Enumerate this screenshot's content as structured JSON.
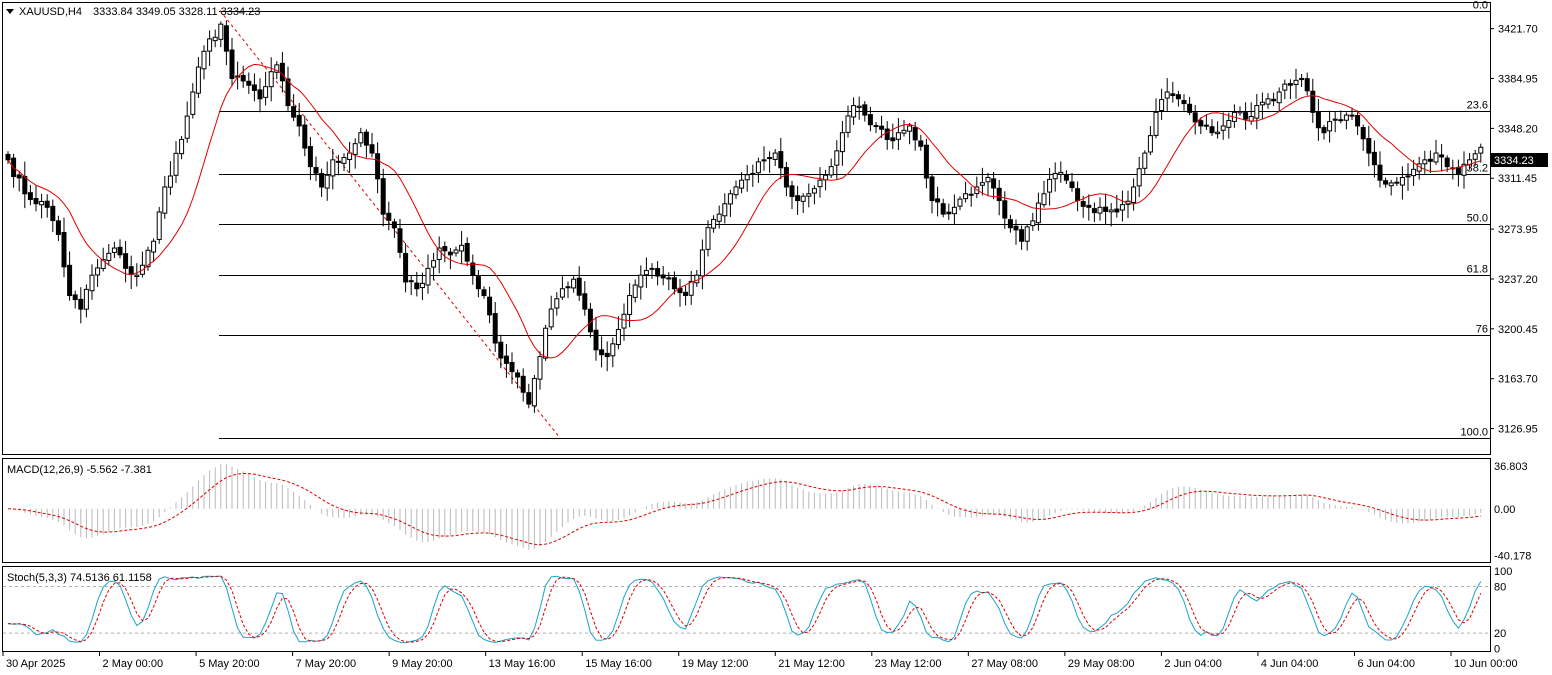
{
  "header": {
    "symbol": "XAUUSD,H4",
    "ohlc": "3333.84 3349.05 3328.11 3334.23",
    "current_price": "3334.23"
  },
  "indicators": {
    "macd_label": "MACD(12,26,9) -5.562 -7.381",
    "stoch_label": "Stoch(5,3,3) 74.5136 61.1158"
  },
  "colors": {
    "bull": "#ffffff",
    "bear": "#000000",
    "ma": "#e00000",
    "signal": "#e00000",
    "stoch_main": "#1aa3c8",
    "stoch_signal": "#e00000",
    "fib_line": "#000000",
    "trend": "#e00000"
  },
  "chart_data": [
    {
      "type": "candlestick",
      "title": "XAUUSD,H4",
      "ylim": [
        3108.2,
        3440.6
      ],
      "y_ticks": [
        "3421.70",
        "3384.95",
        "3348.20",
        "3311.45",
        "3273.95",
        "3237.20",
        "3200.45",
        "3163.70",
        "3126.95"
      ],
      "x_ticks": [
        "30 Apr 2025",
        "2 May 00:00",
        "5 May 20:00",
        "7 May 20:00",
        "9 May 20:00",
        "13 May 16:00",
        "15 May 16:00",
        "19 May 12:00",
        "21 May 12:00",
        "23 May 12:00",
        "27 May 08:00",
        "29 May 08:00",
        "2 Jun 04:00",
        "4 Jun 04:00",
        "6 Jun 04:00",
        "10 Jun 00:00"
      ],
      "fibonacci": {
        "high": 3435.0,
        "low": 3120.0,
        "levels": [
          {
            "label": "0.0",
            "price": 3435.0
          },
          {
            "label": "23.6",
            "price": 3360.7
          },
          {
            "label": "38.2",
            "price": 3314.6
          },
          {
            "label": "50.0",
            "price": 3277.5
          },
          {
            "label": "61.8",
            "price": 3240.4
          },
          {
            "label": "76",
            "price": 3195.6
          },
          {
            "label": "100.0",
            "price": 3120.0
          }
        ]
      },
      "anchors": [
        [
          0,
          3325
        ],
        [
          3,
          3300
        ],
        [
          7,
          3290
        ],
        [
          9,
          3270
        ],
        [
          11,
          3225
        ],
        [
          13,
          3215
        ],
        [
          15,
          3240
        ],
        [
          19,
          3260
        ],
        [
          21,
          3245
        ],
        [
          23,
          3240
        ],
        [
          26,
          3265
        ],
        [
          28,
          3305
        ],
        [
          31,
          3340
        ],
        [
          33,
          3375
        ],
        [
          35,
          3405
        ],
        [
          38,
          3425
        ],
        [
          40,
          3385
        ],
        [
          43,
          3380
        ],
        [
          45,
          3370
        ],
        [
          48,
          3395
        ],
        [
          50,
          3365
        ],
        [
          52,
          3350
        ],
        [
          54,
          3320
        ],
        [
          56,
          3305
        ],
        [
          58,
          3325
        ],
        [
          61,
          3330
        ],
        [
          63,
          3345
        ],
        [
          65,
          3330
        ],
        [
          67,
          3285
        ],
        [
          69,
          3275
        ],
        [
          71,
          3235
        ],
        [
          73,
          3230
        ],
        [
          75,
          3245
        ],
        [
          77,
          3260
        ],
        [
          79,
          3255
        ],
        [
          81,
          3262
        ],
        [
          83,
          3240
        ],
        [
          85,
          3225
        ],
        [
          87,
          3190
        ],
        [
          89,
          3175
        ],
        [
          91,
          3165
        ],
        [
          93,
          3145
        ],
        [
          95,
          3180
        ],
        [
          97,
          3215
        ],
        [
          99,
          3230
        ],
        [
          101,
          3237
        ],
        [
          103,
          3215
        ],
        [
          105,
          3185
        ],
        [
          107,
          3180
        ],
        [
          109,
          3200
        ],
        [
          111,
          3225
        ],
        [
          113,
          3240
        ],
        [
          115,
          3245
        ],
        [
          117,
          3238
        ],
        [
          119,
          3230
        ],
        [
          121,
          3225
        ],
        [
          123,
          3240
        ],
        [
          125,
          3275
        ],
        [
          127,
          3285
        ],
        [
          129,
          3300
        ],
        [
          131,
          3310
        ],
        [
          133,
          3315
        ],
        [
          135,
          3325
        ],
        [
          137,
          3330
        ],
        [
          139,
          3305
        ],
        [
          141,
          3295
        ],
        [
          143,
          3300
        ],
        [
          145,
          3310
        ],
        [
          147,
          3320
        ],
        [
          149,
          3345
        ],
        [
          151,
          3365
        ],
        [
          153,
          3358
        ],
        [
          155,
          3350
        ],
        [
          157,
          3340
        ],
        [
          159,
          3345
        ],
        [
          161,
          3350
        ],
        [
          163,
          3335
        ],
        [
          165,
          3295
        ],
        [
          167,
          3285
        ],
        [
          169,
          3290
        ],
        [
          171,
          3300
        ],
        [
          173,
          3305
        ],
        [
          175,
          3312
        ],
        [
          177,
          3295
        ],
        [
          179,
          3275
        ],
        [
          181,
          3265
        ],
        [
          183,
          3280
        ],
        [
          185,
          3300
        ],
        [
          187,
          3315
        ],
        [
          189,
          3310
        ],
        [
          191,
          3295
        ],
        [
          193,
          3290
        ],
        [
          195,
          3290
        ],
        [
          197,
          3288
        ],
        [
          199,
          3292
        ],
        [
          201,
          3305
        ],
        [
          203,
          3330
        ],
        [
          205,
          3360
        ],
        [
          207,
          3375
        ],
        [
          209,
          3370
        ],
        [
          211,
          3360
        ],
        [
          213,
          3350
        ],
        [
          215,
          3345
        ],
        [
          217,
          3350
        ],
        [
          219,
          3360
        ],
        [
          221,
          3355
        ],
        [
          223,
          3365
        ],
        [
          225,
          3370
        ],
        [
          227,
          3375
        ],
        [
          229,
          3380
        ],
        [
          231,
          3385
        ],
        [
          233,
          3360
        ],
        [
          235,
          3345
        ],
        [
          237,
          3355
        ],
        [
          239,
          3358
        ],
        [
          241,
          3350
        ],
        [
          243,
          3330
        ],
        [
          245,
          3310
        ],
        [
          247,
          3308
        ],
        [
          249,
          3312
        ],
        [
          251,
          3318
        ],
        [
          253,
          3325
        ],
        [
          255,
          3330
        ],
        [
          257,
          3320
        ],
        [
          259,
          3315
        ],
        [
          261,
          3325
        ],
        [
          263,
          3334
        ]
      ],
      "moving_average_period": 12,
      "last_price": 3334.23
    },
    {
      "type": "macd",
      "series": [
        {
          "name": "MACD(12,26,9)",
          "last": -5.562
        },
        {
          "name": "signal",
          "last": -7.381
        }
      ],
      "ylim": [
        -46.0,
        43.0
      ],
      "y_ticks": [
        "36.803",
        "0.00",
        "-40.178"
      ]
    },
    {
      "type": "stochastic",
      "series": [
        {
          "name": "Stoch(5,3,3)",
          "last": 74.5136
        },
        {
          "name": "signal",
          "last": 61.1158
        }
      ],
      "ylim": [
        -3,
        105
      ],
      "y_ticks": [
        "100",
        "80",
        "20",
        "0"
      ],
      "levels": [
        80,
        20
      ]
    }
  ]
}
